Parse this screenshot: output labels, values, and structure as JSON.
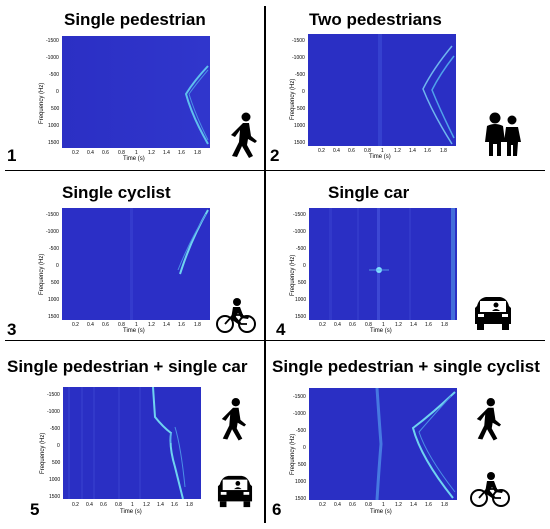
{
  "panels": [
    {
      "title": "Single pedestrian",
      "number": "1",
      "icons": [
        "pedestrian-icon"
      ]
    },
    {
      "title": "Two pedestrians",
      "number": "2",
      "icons": [
        "two-pedestrians-icon"
      ]
    },
    {
      "title": "Single cyclist",
      "number": "3",
      "icons": [
        "cyclist-icon"
      ]
    },
    {
      "title": "Single car",
      "number": "4",
      "icons": [
        "car-icon"
      ]
    },
    {
      "title": "Single pedestrian + single car",
      "number": "5",
      "icons": [
        "pedestrian-icon",
        "car-icon"
      ]
    },
    {
      "title": "Single pedestrian + single cyclist",
      "number": "6",
      "icons": [
        "pedestrian-icon",
        "cyclist-icon"
      ]
    }
  ],
  "axes": {
    "ylabel": "Frequency (Hz)",
    "xlabel": "Time (s)",
    "yticks": [
      "-1500",
      "-1000",
      "-500",
      "0",
      "500",
      "1000",
      "1500"
    ],
    "xticks": [
      "0.2",
      "0.4",
      "0.6",
      "0.8",
      "1",
      "1.2",
      "1.4",
      "1.6",
      "1.8"
    ]
  },
  "colors": {
    "spectrogram_bg": "#2a2fc6",
    "spectrogram_line": "#6fd3f0"
  }
}
